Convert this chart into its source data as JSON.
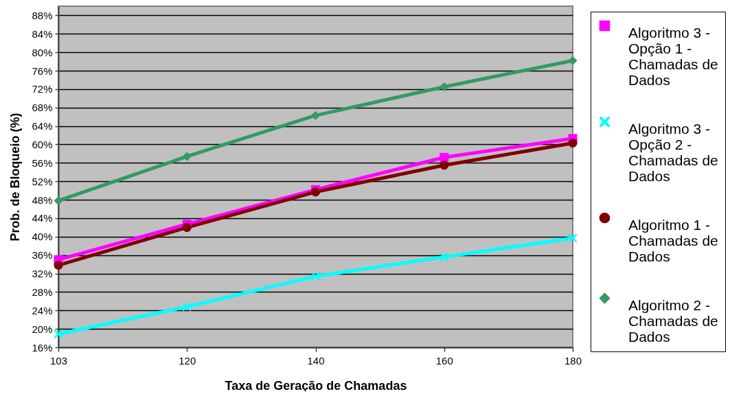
{
  "chart_data": {
    "type": "line",
    "xlabel": "Taxa de Geração de Chamadas",
    "ylabel": "Prob. de Bloqueio (%)",
    "categories": [
      "103",
      "120",
      "140",
      "160",
      "180"
    ],
    "series": [
      {
        "name": "Algoritmo 3 - Opção 1 - Chamadas de Dados",
        "color": "#ff00ff",
        "marker": "square",
        "values": [
          35.0,
          42.7,
          50.2,
          57.2,
          61.3
        ]
      },
      {
        "name": "Algoritmo 3 - Opção 2 - Chamadas de Dados",
        "color": "#00ffff",
        "marker": "cross",
        "values": [
          18.9,
          24.8,
          31.4,
          35.6,
          39.7
        ]
      },
      {
        "name": "Algoritmo 1 - Chamadas de Dados",
        "color": "#800000",
        "marker": "circle",
        "values": [
          33.8,
          42.0,
          49.7,
          55.5,
          60.3
        ]
      },
      {
        "name": "Algoritmo 2 - Chamadas de Dados",
        "color": "#339966",
        "marker": "diamond",
        "values": [
          47.8,
          57.4,
          66.3,
          72.5,
          78.2
        ]
      }
    ],
    "ylim": [
      16,
      90
    ],
    "yticks": [
      {
        "value": 16,
        "label": "16%"
      },
      {
        "value": 20,
        "label": "20%"
      },
      {
        "value": 24,
        "label": "24%"
      },
      {
        "value": 28,
        "label": "28%"
      },
      {
        "value": 32,
        "label": "32%"
      },
      {
        "value": 36,
        "label": "36%"
      },
      {
        "value": 40,
        "label": "40%"
      },
      {
        "value": 44,
        "label": "44%"
      },
      {
        "value": 48,
        "label": "48%"
      },
      {
        "value": 52,
        "label": "52%"
      },
      {
        "value": 56,
        "label": "56%"
      },
      {
        "value": 60,
        "label": "60%"
      },
      {
        "value": 64,
        "label": "64%"
      },
      {
        "value": 68,
        "label": "68%"
      },
      {
        "value": 72,
        "label": "72%"
      },
      {
        "value": 76,
        "label": "76%"
      },
      {
        "value": 80,
        "label": "80%"
      },
      {
        "value": 84,
        "label": "84%"
      },
      {
        "value": 88,
        "label": "88%"
      }
    ],
    "grid": "y",
    "legend": "right",
    "line_style": "solid"
  }
}
